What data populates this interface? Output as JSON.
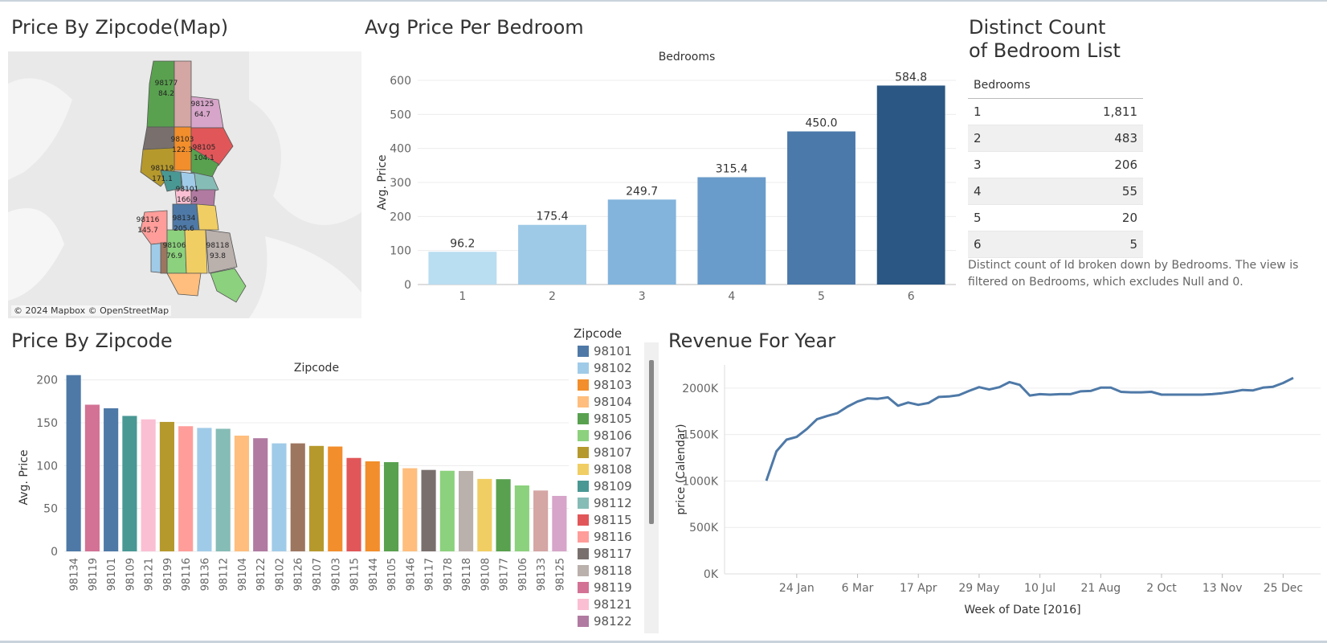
{
  "titles": {
    "map": "Price By Zipcode(Map)",
    "bedroom": "Avg Price Per Bedroom",
    "distinct": "Distinct Count\nof Bedroom List",
    "zipcode": "Price By Zipcode",
    "revenue": "Revenue For Year"
  },
  "map": {
    "attribution": "© 2024 Mapbox © OpenStreetMap",
    "labels": [
      {
        "zip": "98177",
        "value": "84.2"
      },
      {
        "zip": "98125",
        "value": "64.7"
      },
      {
        "zip": "98103",
        "value": "122.3"
      },
      {
        "zip": "98105",
        "value": "104.1"
      },
      {
        "zip": "98119",
        "value": "171.1"
      },
      {
        "zip": "98101",
        "value": "166.9"
      },
      {
        "zip": "98116",
        "value": "145.7"
      },
      {
        "zip": "98134",
        "value": "205.6"
      },
      {
        "zip": "98106",
        "value": "76.9"
      },
      {
        "zip": "98118",
        "value": "93.8"
      }
    ]
  },
  "distinct_table": {
    "header": "Bedrooms",
    "rows": [
      {
        "bedrooms": "1",
        "count": "1,811"
      },
      {
        "bedrooms": "2",
        "count": "483"
      },
      {
        "bedrooms": "3",
        "count": "206"
      },
      {
        "bedrooms": "4",
        "count": "55"
      },
      {
        "bedrooms": "5",
        "count": "20"
      },
      {
        "bedrooms": "6",
        "count": "5"
      }
    ],
    "caption": "Distinct count of Id broken down by Bedrooms. The view is filtered on Bedrooms, which excludes Null and 0."
  },
  "legend": {
    "title": "Zipcode",
    "items": [
      {
        "zip": "98101",
        "color": "#4e79a7"
      },
      {
        "zip": "98102",
        "color": "#a0cbe8"
      },
      {
        "zip": "98103",
        "color": "#f28e2b"
      },
      {
        "zip": "98104",
        "color": "#ffbe7d"
      },
      {
        "zip": "98105",
        "color": "#59a14f"
      },
      {
        "zip": "98106",
        "color": "#8cd17d"
      },
      {
        "zip": "98107",
        "color": "#b6992d"
      },
      {
        "zip": "98108",
        "color": "#f1ce63"
      },
      {
        "zip": "98109",
        "color": "#499894"
      },
      {
        "zip": "98112",
        "color": "#86bcb6"
      },
      {
        "zip": "98115",
        "color": "#e15759"
      },
      {
        "zip": "98116",
        "color": "#ff9d9a"
      },
      {
        "zip": "98117",
        "color": "#79706e"
      },
      {
        "zip": "98118",
        "color": "#bab0ac"
      },
      {
        "zip": "98119",
        "color": "#d37295"
      },
      {
        "zip": "98121",
        "color": "#fabfd2"
      },
      {
        "zip": "98122",
        "color": "#b07aa1"
      }
    ]
  },
  "chart_data": [
    {
      "type": "bar",
      "title": "Avg Price Per Bedroom",
      "header": "Bedrooms",
      "ylabel": "Avg. Price",
      "categories": [
        "1",
        "2",
        "3",
        "4",
        "5",
        "6"
      ],
      "values": [
        96.2,
        175.4,
        249.7,
        315.4,
        450.0,
        584.8
      ],
      "labels": [
        "96.2",
        "175.4",
        "249.7",
        "315.4",
        "450.0",
        "584.8"
      ],
      "colors": [
        "#b9ddf1",
        "#9fcae7",
        "#82b4dc",
        "#6a9ccb",
        "#4a79aa",
        "#2a5783"
      ],
      "yticks": [
        "0",
        "100",
        "200",
        "300",
        "400",
        "500",
        "600"
      ],
      "ylim": [
        0,
        600
      ],
      "grid": true
    },
    {
      "type": "bar",
      "title": "Price By Zipcode",
      "header": "Zipcode",
      "ylabel": "Avg. Price",
      "categories": [
        "98134",
        "98119",
        "98101",
        "98109",
        "98121",
        "98199",
        "98116",
        "98136",
        "98112",
        "98104",
        "98122",
        "98102",
        "98126",
        "98107",
        "98103",
        "98115",
        "98144",
        "98105",
        "98146",
        "98117",
        "98178",
        "98118",
        "98108",
        "98177",
        "98106",
        "98133",
        "98125"
      ],
      "values": [
        205.6,
        171.1,
        166.9,
        158,
        154,
        151,
        146,
        144,
        143,
        135,
        132,
        126,
        126,
        123,
        122.3,
        109,
        105,
        104.1,
        97,
        95,
        94,
        93.8,
        84.5,
        84.2,
        76.9,
        71,
        64.7
      ],
      "colors": [
        "#4e79a7",
        "#d37295",
        "#4e79a7",
        "#499894",
        "#fabfd2",
        "#b6992d",
        "#ff9d9a",
        "#a0cbe8",
        "#86bcb6",
        "#ffbe7d",
        "#b07aa1",
        "#a0cbe8",
        "#9d7660",
        "#b6992d",
        "#f28e2b",
        "#e15759",
        "#f28e2b",
        "#59a14f",
        "#ffbe7d",
        "#79706e",
        "#8cd17d",
        "#bab0ac",
        "#f1ce63",
        "#59a14f",
        "#8cd17d",
        "#d4a6a4",
        "#d7a5c9"
      ],
      "yticks": [
        "0",
        "50",
        "100",
        "150",
        "200"
      ],
      "ylim": [
        0,
        210
      ],
      "grid": true
    },
    {
      "type": "line",
      "title": "Revenue For Year",
      "xlabel": "Week of Date [2016]",
      "ylabel": "price (Calendar)",
      "xticks": [
        "24 Jan",
        "6 Mar",
        "17 Apr",
        "29 May",
        "10 Jul",
        "21 Aug",
        "2 Oct",
        "13 Nov",
        "25 Dec"
      ],
      "yticks": [
        "0K",
        "500K",
        "1000K",
        "1500K",
        "2000K"
      ],
      "ylim": [
        0,
        2250000
      ],
      "color": "#4e79a7",
      "values": [
        1003000,
        1320000,
        1445000,
        1475000,
        1560000,
        1665000,
        1700000,
        1730000,
        1800000,
        1855000,
        1890000,
        1885000,
        1900000,
        1810000,
        1845000,
        1820000,
        1840000,
        1905000,
        1910000,
        1925000,
        1970000,
        2010000,
        1985000,
        2010000,
        2065000,
        2035000,
        1920000,
        1935000,
        1930000,
        1935000,
        1935000,
        1965000,
        1970000,
        2005000,
        2005000,
        1960000,
        1955000,
        1955000,
        1960000,
        1930000,
        1930000,
        1930000,
        1930000,
        1930000,
        1935000,
        1945000,
        1960000,
        1980000,
        1975000,
        2005000,
        2015000,
        2055000,
        2110000
      ]
    }
  ]
}
